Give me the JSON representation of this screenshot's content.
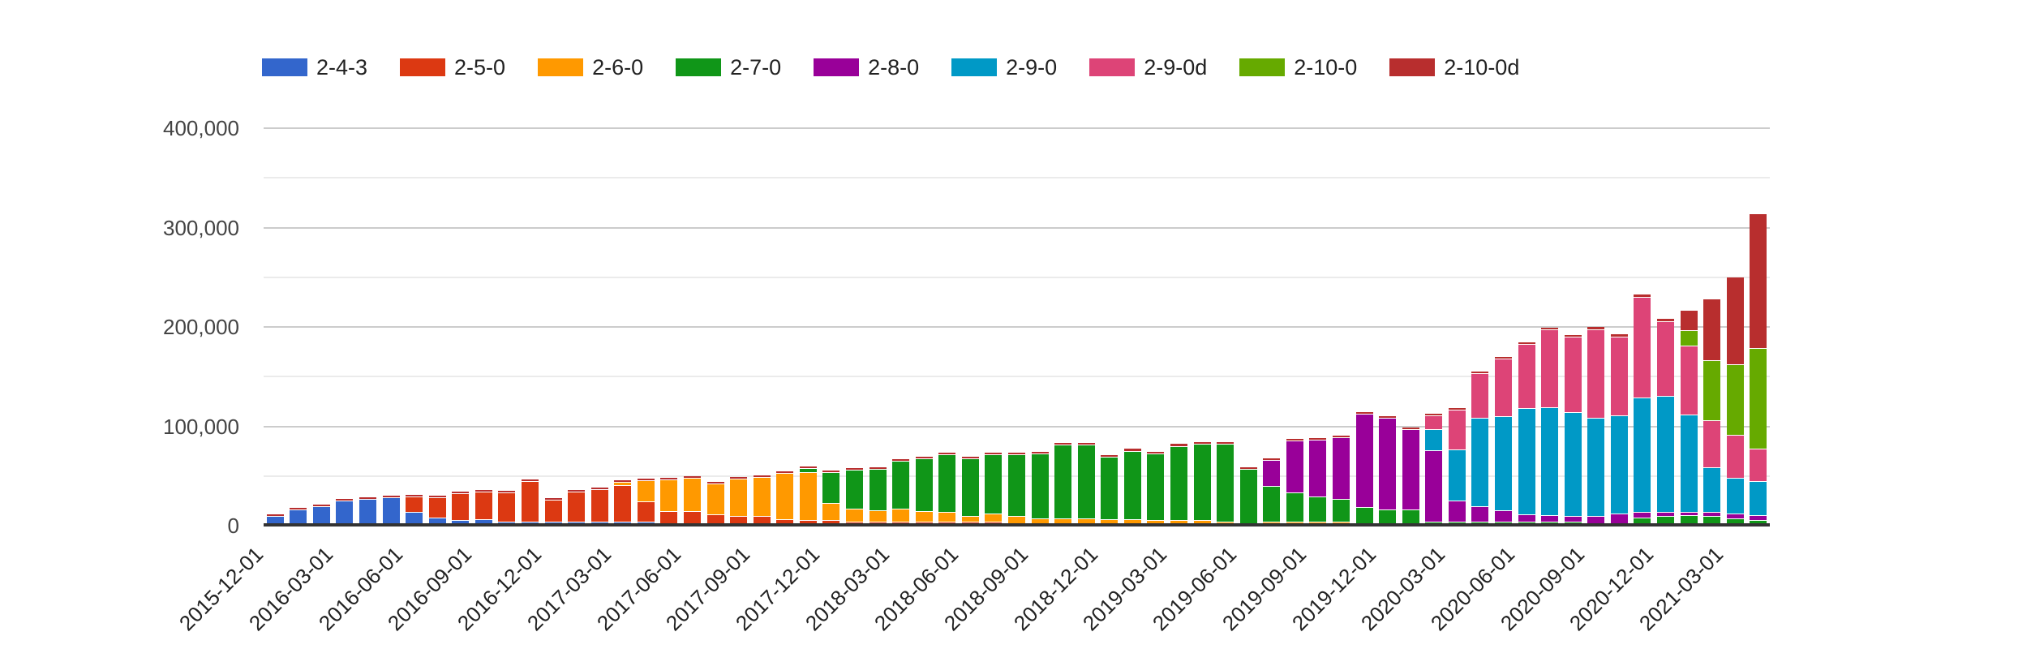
{
  "chart_data": {
    "type": "bar",
    "stacked": true,
    "title": "",
    "xlabel": "",
    "ylabel": "",
    "ylim": [
      0,
      400000
    ],
    "grid": true,
    "legend_position": "top",
    "y_ticks": [
      {
        "value": 0,
        "label": "0"
      },
      {
        "value": 100000,
        "label": "100,000"
      },
      {
        "value": 200000,
        "label": "200,000"
      },
      {
        "value": 300000,
        "label": "300,000"
      },
      {
        "value": 400000,
        "label": "400,000"
      }
    ],
    "y_minor_ticks": [
      50000,
      150000,
      250000,
      350000
    ],
    "x_tick_every": 3,
    "x_tick_labels": [
      "2015-12-01",
      "2016-03-01",
      "2016-06-01",
      "2016-09-01",
      "2016-12-01",
      "2017-03-01",
      "2017-06-01",
      "2017-09-01",
      "2017-12-01",
      "2018-03-01",
      "2018-06-01",
      "2018-09-01",
      "2018-12-01",
      "2019-03-01",
      "2019-06-01",
      "2019-09-01",
      "2019-12-01",
      "2020-03-01",
      "2020-06-01",
      "2020-09-01",
      "2020-12-01",
      "2021-03-01"
    ],
    "categories": [
      "2015-12-01",
      "2016-01-01",
      "2016-02-01",
      "2016-03-01",
      "2016-04-01",
      "2016-05-01",
      "2016-06-01",
      "2016-07-01",
      "2016-08-01",
      "2016-09-01",
      "2016-10-01",
      "2016-11-01",
      "2016-12-01",
      "2017-01-01",
      "2017-02-01",
      "2017-03-01",
      "2017-04-01",
      "2017-05-01",
      "2017-06-01",
      "2017-07-01",
      "2017-08-01",
      "2017-09-01",
      "2017-10-01",
      "2017-11-01",
      "2017-12-01",
      "2018-01-01",
      "2018-02-01",
      "2018-03-01",
      "2018-04-01",
      "2018-05-01",
      "2018-06-01",
      "2018-07-01",
      "2018-08-01",
      "2018-09-01",
      "2018-10-01",
      "2018-11-01",
      "2018-12-01",
      "2019-01-01",
      "2019-02-01",
      "2019-03-01",
      "2019-04-01",
      "2019-05-01",
      "2019-06-01",
      "2019-07-01",
      "2019-08-01",
      "2019-09-01",
      "2019-10-01",
      "2019-11-01",
      "2019-12-01",
      "2020-01-01",
      "2020-02-01",
      "2020-03-01",
      "2020-04-01",
      "2020-05-01",
      "2020-06-01",
      "2020-07-01",
      "2020-08-01",
      "2020-09-01",
      "2020-10-01",
      "2020-11-01",
      "2020-12-01",
      "2021-01-01",
      "2021-02-01",
      "2021-03-01",
      "2021-04-01"
    ],
    "series": [
      {
        "name": "2-4-3",
        "color": "#3366CC",
        "values": [
          7000,
          14000,
          17500,
          22500,
          24500,
          26000,
          11500,
          6000,
          3500,
          4000,
          2000,
          2000,
          1500,
          1500,
          1000,
          1000,
          500,
          0,
          0,
          0,
          0,
          0,
          0,
          0,
          0,
          0,
          0,
          0,
          0,
          0,
          0,
          0,
          0,
          0,
          0,
          0,
          0,
          0,
          0,
          0,
          0,
          0,
          0,
          0,
          0,
          0,
          0,
          0,
          0,
          0,
          0,
          0,
          0,
          0,
          0,
          0,
          0,
          0,
          0,
          0,
          0,
          0,
          0,
          0,
          0
        ]
      },
      {
        "name": "2-5-0",
        "color": "#DC3912",
        "values": [
          0,
          0,
          0,
          0,
          0,
          0,
          15000,
          19000,
          26000,
          27000,
          28000,
          40000,
          21500,
          29500,
          32000,
          36000,
          20000,
          12000,
          12000,
          9000,
          7000,
          7000,
          4000,
          3000,
          3000,
          2000,
          2000,
          1500,
          1500,
          1000,
          1000,
          1000,
          0,
          0,
          0,
          0,
          0,
          0,
          0,
          0,
          0,
          0,
          0,
          0,
          0,
          0,
          0,
          0,
          0,
          0,
          0,
          0,
          0,
          0,
          0,
          0,
          0,
          0,
          0,
          0,
          0,
          0,
          0,
          0,
          0
        ]
      },
      {
        "name": "2-6-0",
        "color": "#FF9900",
        "values": [
          0,
          0,
          0,
          0,
          0,
          0,
          0,
          0,
          0,
          0,
          0,
          0,
          0,
          0,
          0,
          2000,
          20000,
          31000,
          33000,
          30000,
          37000,
          39000,
          45500,
          48000,
          17000,
          12000,
          10000,
          12000,
          10000,
          9000,
          5000,
          7000,
          7000,
          5000,
          5000,
          5000,
          4000,
          4000,
          3000,
          3000,
          3000,
          2000,
          0,
          1000,
          1000,
          1000,
          1000,
          0,
          0,
          0,
          0,
          0,
          0,
          0,
          0,
          0,
          0,
          0,
          0,
          0,
          0,
          0,
          0,
          0,
          0
        ]
      },
      {
        "name": "2-7-0",
        "color": "#109618",
        "values": [
          0,
          0,
          0,
          0,
          0,
          0,
          0,
          0,
          0,
          0,
          0,
          0,
          0,
          0,
          0,
          0,
          0,
          0,
          0,
          0,
          0,
          0,
          0,
          3000,
          30000,
          38000,
          41000,
          48000,
          52000,
          57000,
          57000,
          59000,
          62000,
          64000,
          73000,
          73000,
          62000,
          68000,
          66000,
          74000,
          76000,
          77000,
          54500,
          35000,
          28500,
          24500,
          22000,
          16500,
          14000,
          13500,
          2000,
          2000,
          2000,
          2000,
          2000,
          2000,
          2000,
          0,
          0,
          5500,
          7500,
          8000,
          7000,
          5000,
          3000
        ]
      },
      {
        "name": "2-8-0",
        "color": "#990099",
        "values": [
          0,
          0,
          0,
          0,
          0,
          0,
          0,
          0,
          0,
          0,
          0,
          0,
          0,
          0,
          0,
          0,
          0,
          0,
          0,
          0,
          0,
          0,
          0,
          0,
          0,
          0,
          0,
          0,
          0,
          0,
          0,
          0,
          0,
          0,
          0,
          0,
          0,
          0,
          0,
          0,
          0,
          0,
          0,
          25500,
          51500,
          56000,
          61500,
          93000,
          91000,
          80500,
          71000,
          20000,
          14500,
          10500,
          6000,
          5500,
          4500,
          7500,
          9500,
          5500,
          3500,
          3000,
          3500,
          4000,
          4000
        ]
      },
      {
        "name": "2-9-0",
        "color": "#0099C6",
        "values": [
          0,
          0,
          0,
          0,
          0,
          0,
          0,
          0,
          0,
          0,
          0,
          0,
          0,
          0,
          0,
          0,
          0,
          0,
          0,
          0,
          0,
          0,
          0,
          0,
          0,
          0,
          0,
          0,
          0,
          0,
          0,
          0,
          0,
          0,
          0,
          0,
          0,
          0,
          0,
          0,
          0,
          0,
          0,
          0,
          0,
          0,
          0,
          0,
          0,
          0,
          20000,
          50500,
          88000,
          93500,
          106000,
          108000,
          104000,
          97500,
          98500,
          114000,
          115500,
          96500,
          44500,
          35000,
          34000
        ]
      },
      {
        "name": "2-9-0d",
        "color": "#DD4477",
        "values": [
          0,
          0,
          0,
          0,
          0,
          0,
          0,
          0,
          0,
          0,
          0,
          0,
          0,
          0,
          0,
          0,
          0,
          0,
          0,
          0,
          0,
          0,
          0,
          0,
          0,
          0,
          0,
          0,
          0,
          0,
          0,
          0,
          0,
          0,
          0,
          0,
          0,
          0,
          0,
          0,
          0,
          0,
          0,
          0,
          0,
          0,
          0,
          0,
          0,
          0,
          13500,
          39500,
          44500,
          57500,
          64000,
          77500,
          75000,
          88500,
          78500,
          100500,
          74500,
          68500,
          46500,
          42500,
          32000
        ]
      },
      {
        "name": "2-10-0",
        "color": "#66AA00",
        "values": [
          0,
          0,
          0,
          0,
          0,
          0,
          0,
          0,
          0,
          0,
          0,
          0,
          0,
          0,
          0,
          0,
          0,
          0,
          0,
          0,
          0,
          0,
          0,
          0,
          0,
          0,
          0,
          0,
          0,
          0,
          0,
          0,
          0,
          0,
          0,
          0,
          0,
          0,
          0,
          0,
          0,
          0,
          0,
          0,
          0,
          0,
          0,
          0,
          0,
          0,
          0,
          0,
          0,
          0,
          0,
          0,
          0,
          0,
          0,
          0,
          0,
          15000,
          59000,
          70000,
          100500
        ]
      },
      {
        "name": "2-10-0d",
        "color": "#B82E2E",
        "values": [
          1200,
          1200,
          1200,
          1500,
          1500,
          1500,
          1500,
          1500,
          1200,
          1500,
          1200,
          1200,
          1200,
          1200,
          1200,
          1200,
          1200,
          1200,
          1200,
          1200,
          1200,
          1200,
          1200,
          1200,
          1500,
          1500,
          1500,
          1500,
          1500,
          1500,
          1500,
          1500,
          1500,
          1500,
          1500,
          1500,
          1500,
          2000,
          2000,
          2000,
          2000,
          2000,
          1500,
          1500,
          1500,
          1500,
          1500,
          1500,
          1500,
          1500,
          1500,
          1500,
          1500,
          1500,
          1500,
          1500,
          1500,
          2500,
          2500,
          2500,
          2500,
          20000,
          62000,
          87500,
          134000
        ]
      }
    ]
  },
  "colors": {
    "grid_major": "#cccccc",
    "grid_minor": "#ebebeb",
    "baseline": "#333333",
    "y_label_text": "#444444",
    "x_label_text": "#222222",
    "legend_text": "#222222",
    "background": "#ffffff"
  }
}
